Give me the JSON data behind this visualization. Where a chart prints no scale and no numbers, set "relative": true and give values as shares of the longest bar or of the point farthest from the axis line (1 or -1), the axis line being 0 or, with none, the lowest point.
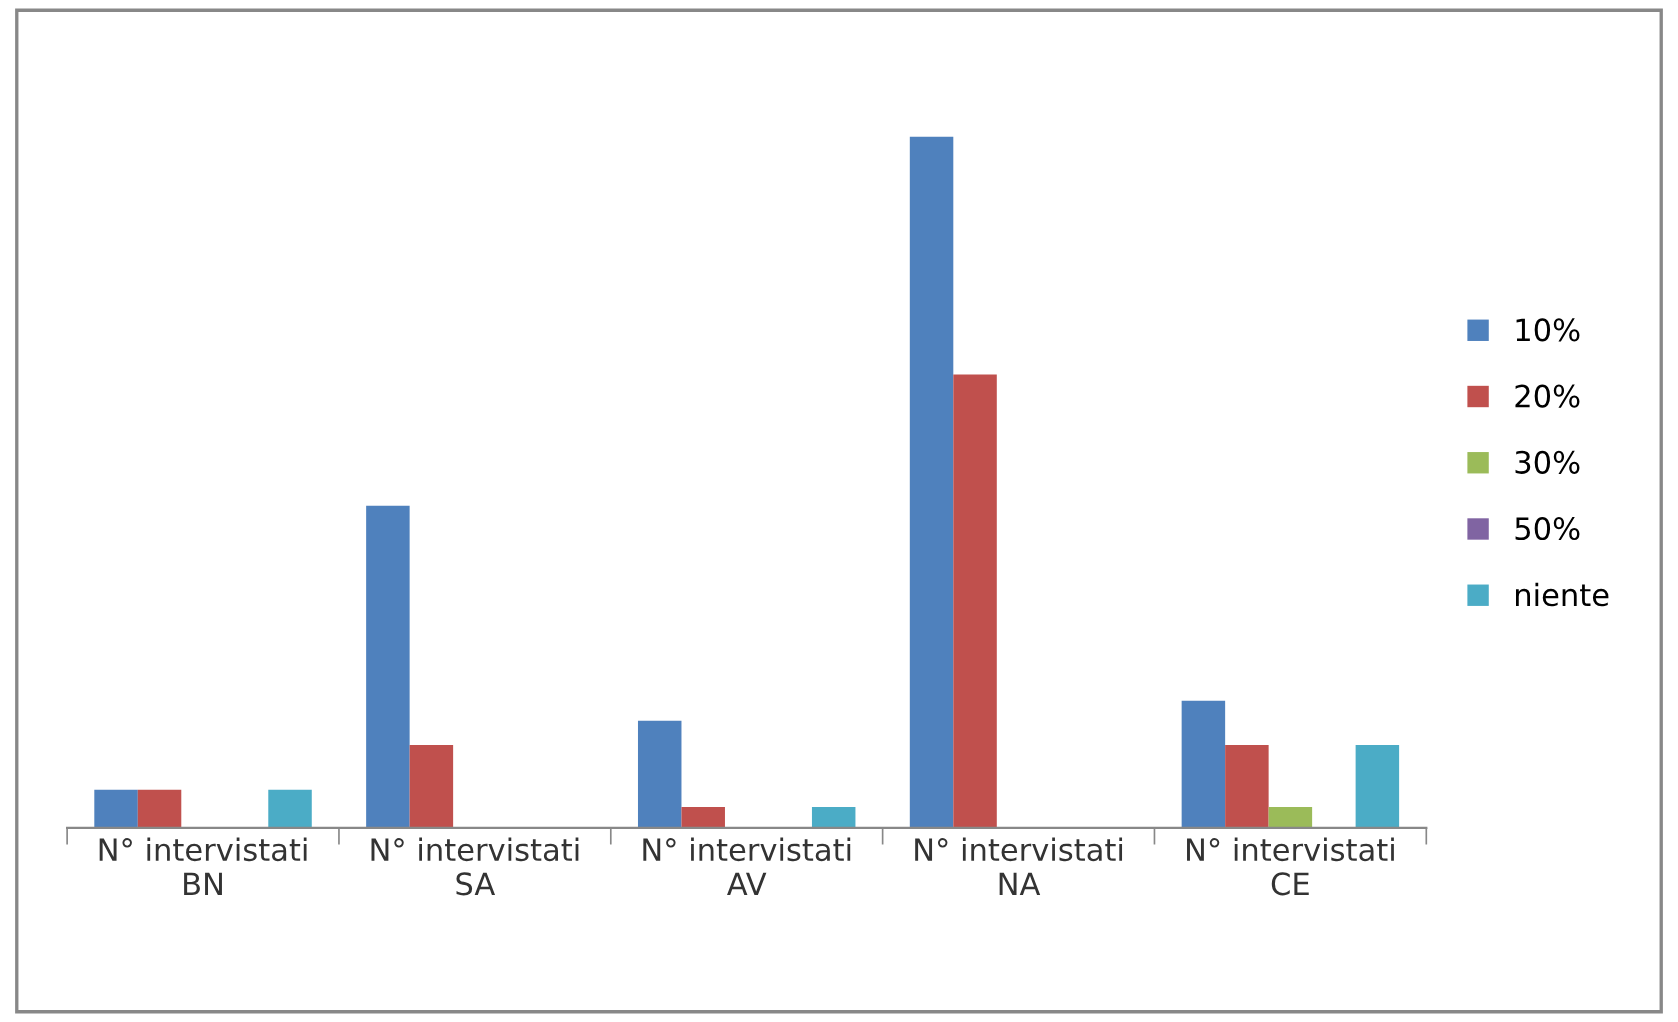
{
  "chart_data": {
    "type": "bar",
    "relative": true,
    "legend": "right",
    "grid": false,
    "categories": [
      "N° intervistati\nBN",
      "N° intervistati\nSA",
      "N° intervistati\nAV",
      "N° intervistati\nNA",
      "N° intervistati\nCE"
    ],
    "series": [
      {
        "name": "10%",
        "color": "#4f81bd",
        "values": [
          0.055,
          0.466,
          0.155,
          1,
          0.184
        ]
      },
      {
        "name": "20%",
        "color": "#c0504d",
        "values": [
          0.055,
          0.12,
          0.03,
          0.656,
          0.12
        ]
      },
      {
        "name": "30%",
        "color": "#9bbb59",
        "values": [
          0,
          0,
          0,
          0,
          0.03
        ]
      },
      {
        "name": "50%",
        "color": "#8064a2",
        "values": [
          0,
          0,
          0,
          0,
          0
        ]
      },
      {
        "name": "niente",
        "color": "#4bacc6",
        "values": [
          0.055,
          0,
          0.03,
          0,
          0.12
        ]
      }
    ]
  }
}
